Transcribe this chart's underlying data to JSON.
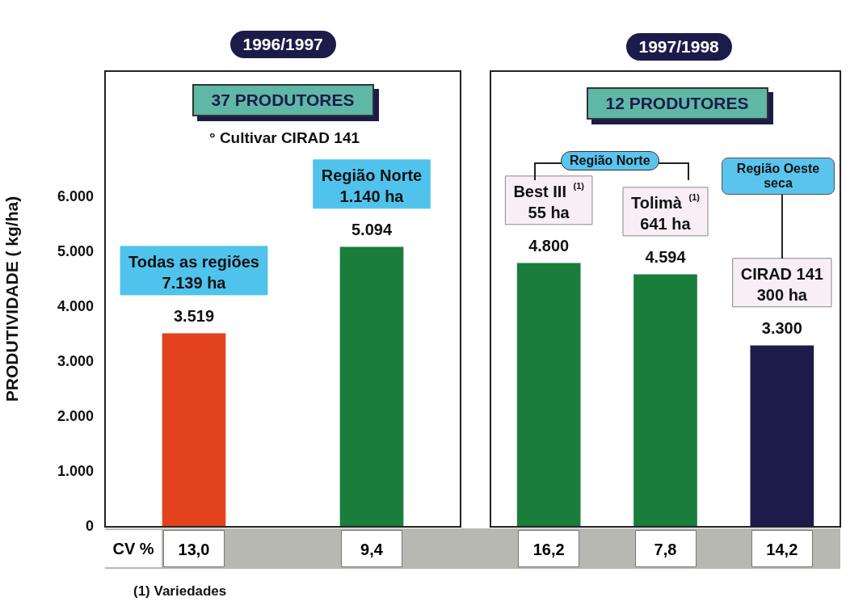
{
  "chart_data": [
    {
      "type": "bar",
      "ylabel": "PRODUTIVIDADE ( kg/ha)",
      "categories": [
        "Todas as regiões\n7.139 ha",
        "Região Norte\n1.140 ha"
      ],
      "values": [
        3519,
        5094
      ],
      "colors": [
        "#e2431c",
        "#1a7d3c"
      ],
      "value_labels": [
        "3.519",
        "5.094"
      ],
      "ylim": [
        0,
        8300
      ],
      "yticks": [
        {
          "value": 0,
          "label": "0"
        },
        {
          "value": 1000,
          "label": "1.000"
        },
        {
          "value": 2000,
          "label": "2.000"
        },
        {
          "value": 3000,
          "label": "3.000"
        },
        {
          "value": 4000,
          "label": "4.000"
        },
        {
          "value": 5000,
          "label": "5.000"
        },
        {
          "value": 6000,
          "label": "6.000"
        }
      ],
      "grid": false,
      "legend": false,
      "annotations": [
        "1996/1997",
        "37 PRODUTORES",
        "° Cultivar CIRAD 141",
        "CV %",
        "(1) Variedades",
        "13,0",
        "9,4"
      ]
    },
    {
      "type": "bar",
      "categories": [
        "Best III $^{(1)}$\n55 ha",
        "Tolimà $^{(1)}$\n641 ha",
        "CIRAD 141\n300 ha"
      ],
      "values": [
        4800,
        4594,
        3300
      ],
      "colors": [
        "#1a7d3c",
        "#1a7d3c",
        "#1c1b4a"
      ],
      "value_labels": [
        "4.800",
        "4.594",
        "3.300"
      ],
      "ylim": [
        0,
        8300
      ],
      "grid": false,
      "legend": false,
      "tick_labels": "x",
      "annotations": [
        "1997/1998",
        "12 PRODUTORES",
        "Região Norte",
        "Região Oeste\nseca",
        "16,2",
        "7,8",
        "14,2"
      ]
    }
  ]
}
